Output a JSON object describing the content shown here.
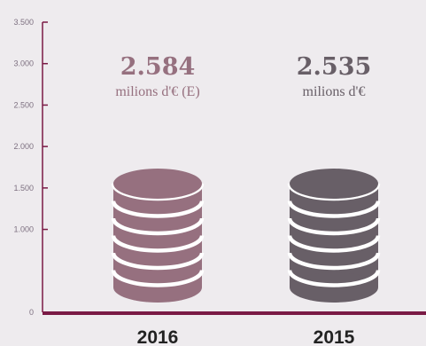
{
  "colors": {
    "background": "#eeebee",
    "axis": "#7a1a45",
    "tick_text": "#7d7080",
    "coin_2016": "#96707f",
    "coin_2015": "#685f67",
    "value_2016": "#96707f",
    "value_2015": "#685f67"
  },
  "chart_data": {
    "type": "bar",
    "categories": [
      "2016",
      "2015"
    ],
    "values": [
      2584,
      2535
    ],
    "data_labels": [
      {
        "value": "2.584",
        "unit": "milions d'€ (E)"
      },
      {
        "value": "2.535",
        "unit": "milions d'€"
      }
    ],
    "y_ticks": [
      "0",
      "1.000",
      "1.500",
      "2.000",
      "2.500",
      "3.000",
      "3.500"
    ],
    "ylim": [
      0,
      3500
    ],
    "grid": false,
    "title": "",
    "xlabel": "",
    "ylabel": ""
  }
}
